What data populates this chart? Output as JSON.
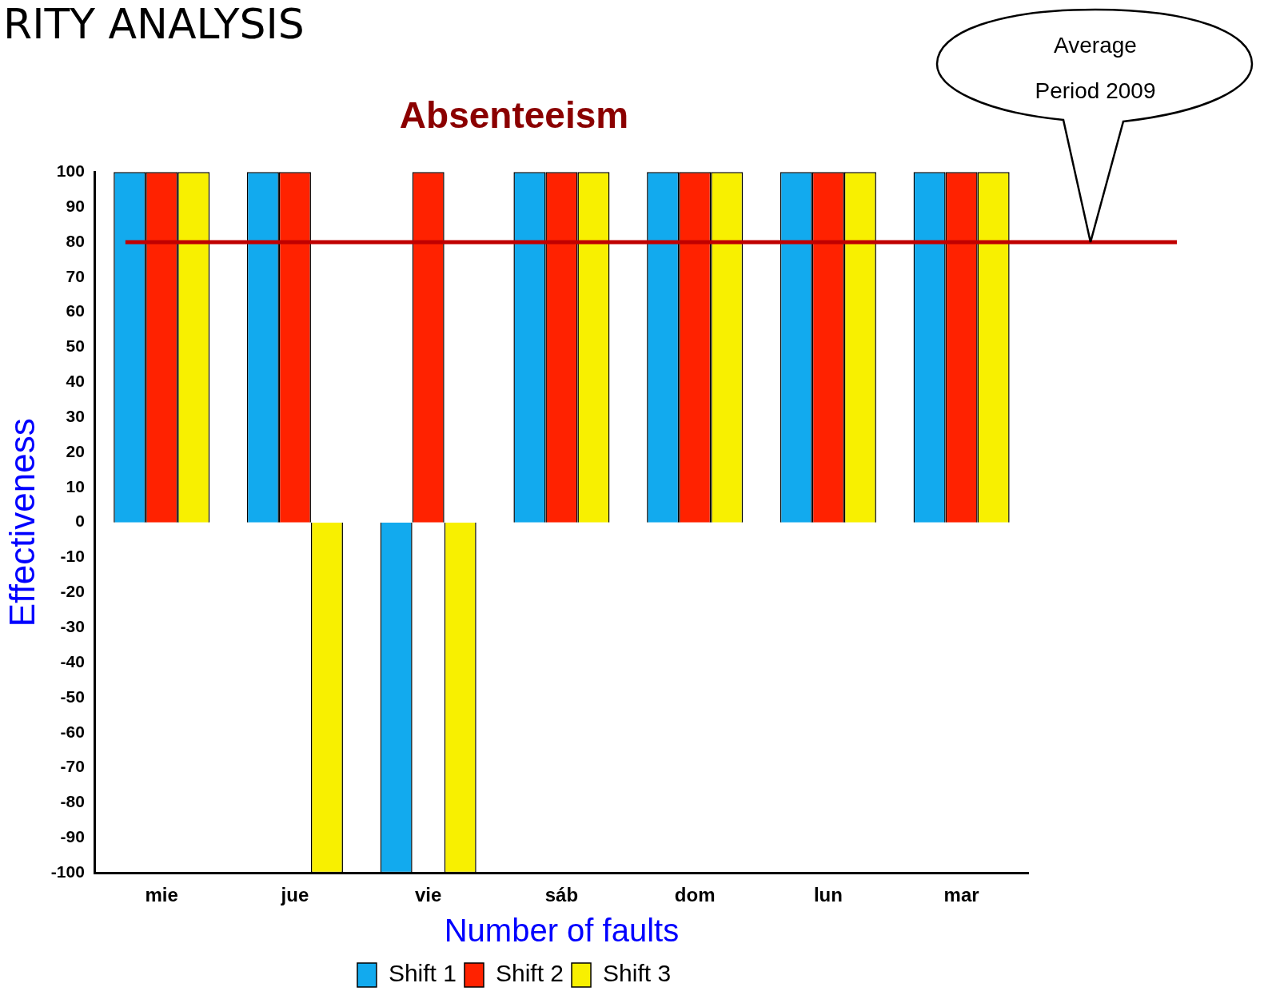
{
  "chart_data": {
    "type": "bar",
    "title": "Absenteeism",
    "xlabel": "Number of faults",
    "ylabel": "Effectiveness",
    "annotations": [
      "RITY ANALYSIS",
      "Average Period 2009"
    ],
    "categories": [
      "mie",
      "jue",
      "vie",
      "sáb",
      "dom",
      "lun",
      "mar"
    ],
    "series": [
      {
        "name": "Shift 1",
        "color": "#12aaee",
        "values": [
          100,
          100,
          -100,
          100,
          100,
          100,
          100
        ]
      },
      {
        "name": "Shift 2",
        "color": "#ff2200",
        "values": [
          100,
          100,
          100,
          100,
          100,
          100,
          100
        ]
      },
      {
        "name": "Shift 3",
        "color": "#f8f000",
        "values": [
          100,
          -100,
          -100,
          100,
          100,
          100,
          100
        ]
      }
    ],
    "ylim": [
      -100,
      100
    ],
    "yticks": [
      -100,
      -90,
      -80,
      -70,
      -60,
      -50,
      -40,
      -30,
      -20,
      -10,
      0,
      10,
      20,
      30,
      40,
      50,
      60,
      70,
      80,
      90,
      100
    ],
    "ref_lines": [
      {
        "axis": "y",
        "value": 80,
        "color": "#c00000"
      }
    ],
    "grid": false,
    "legend": "bottom"
  }
}
